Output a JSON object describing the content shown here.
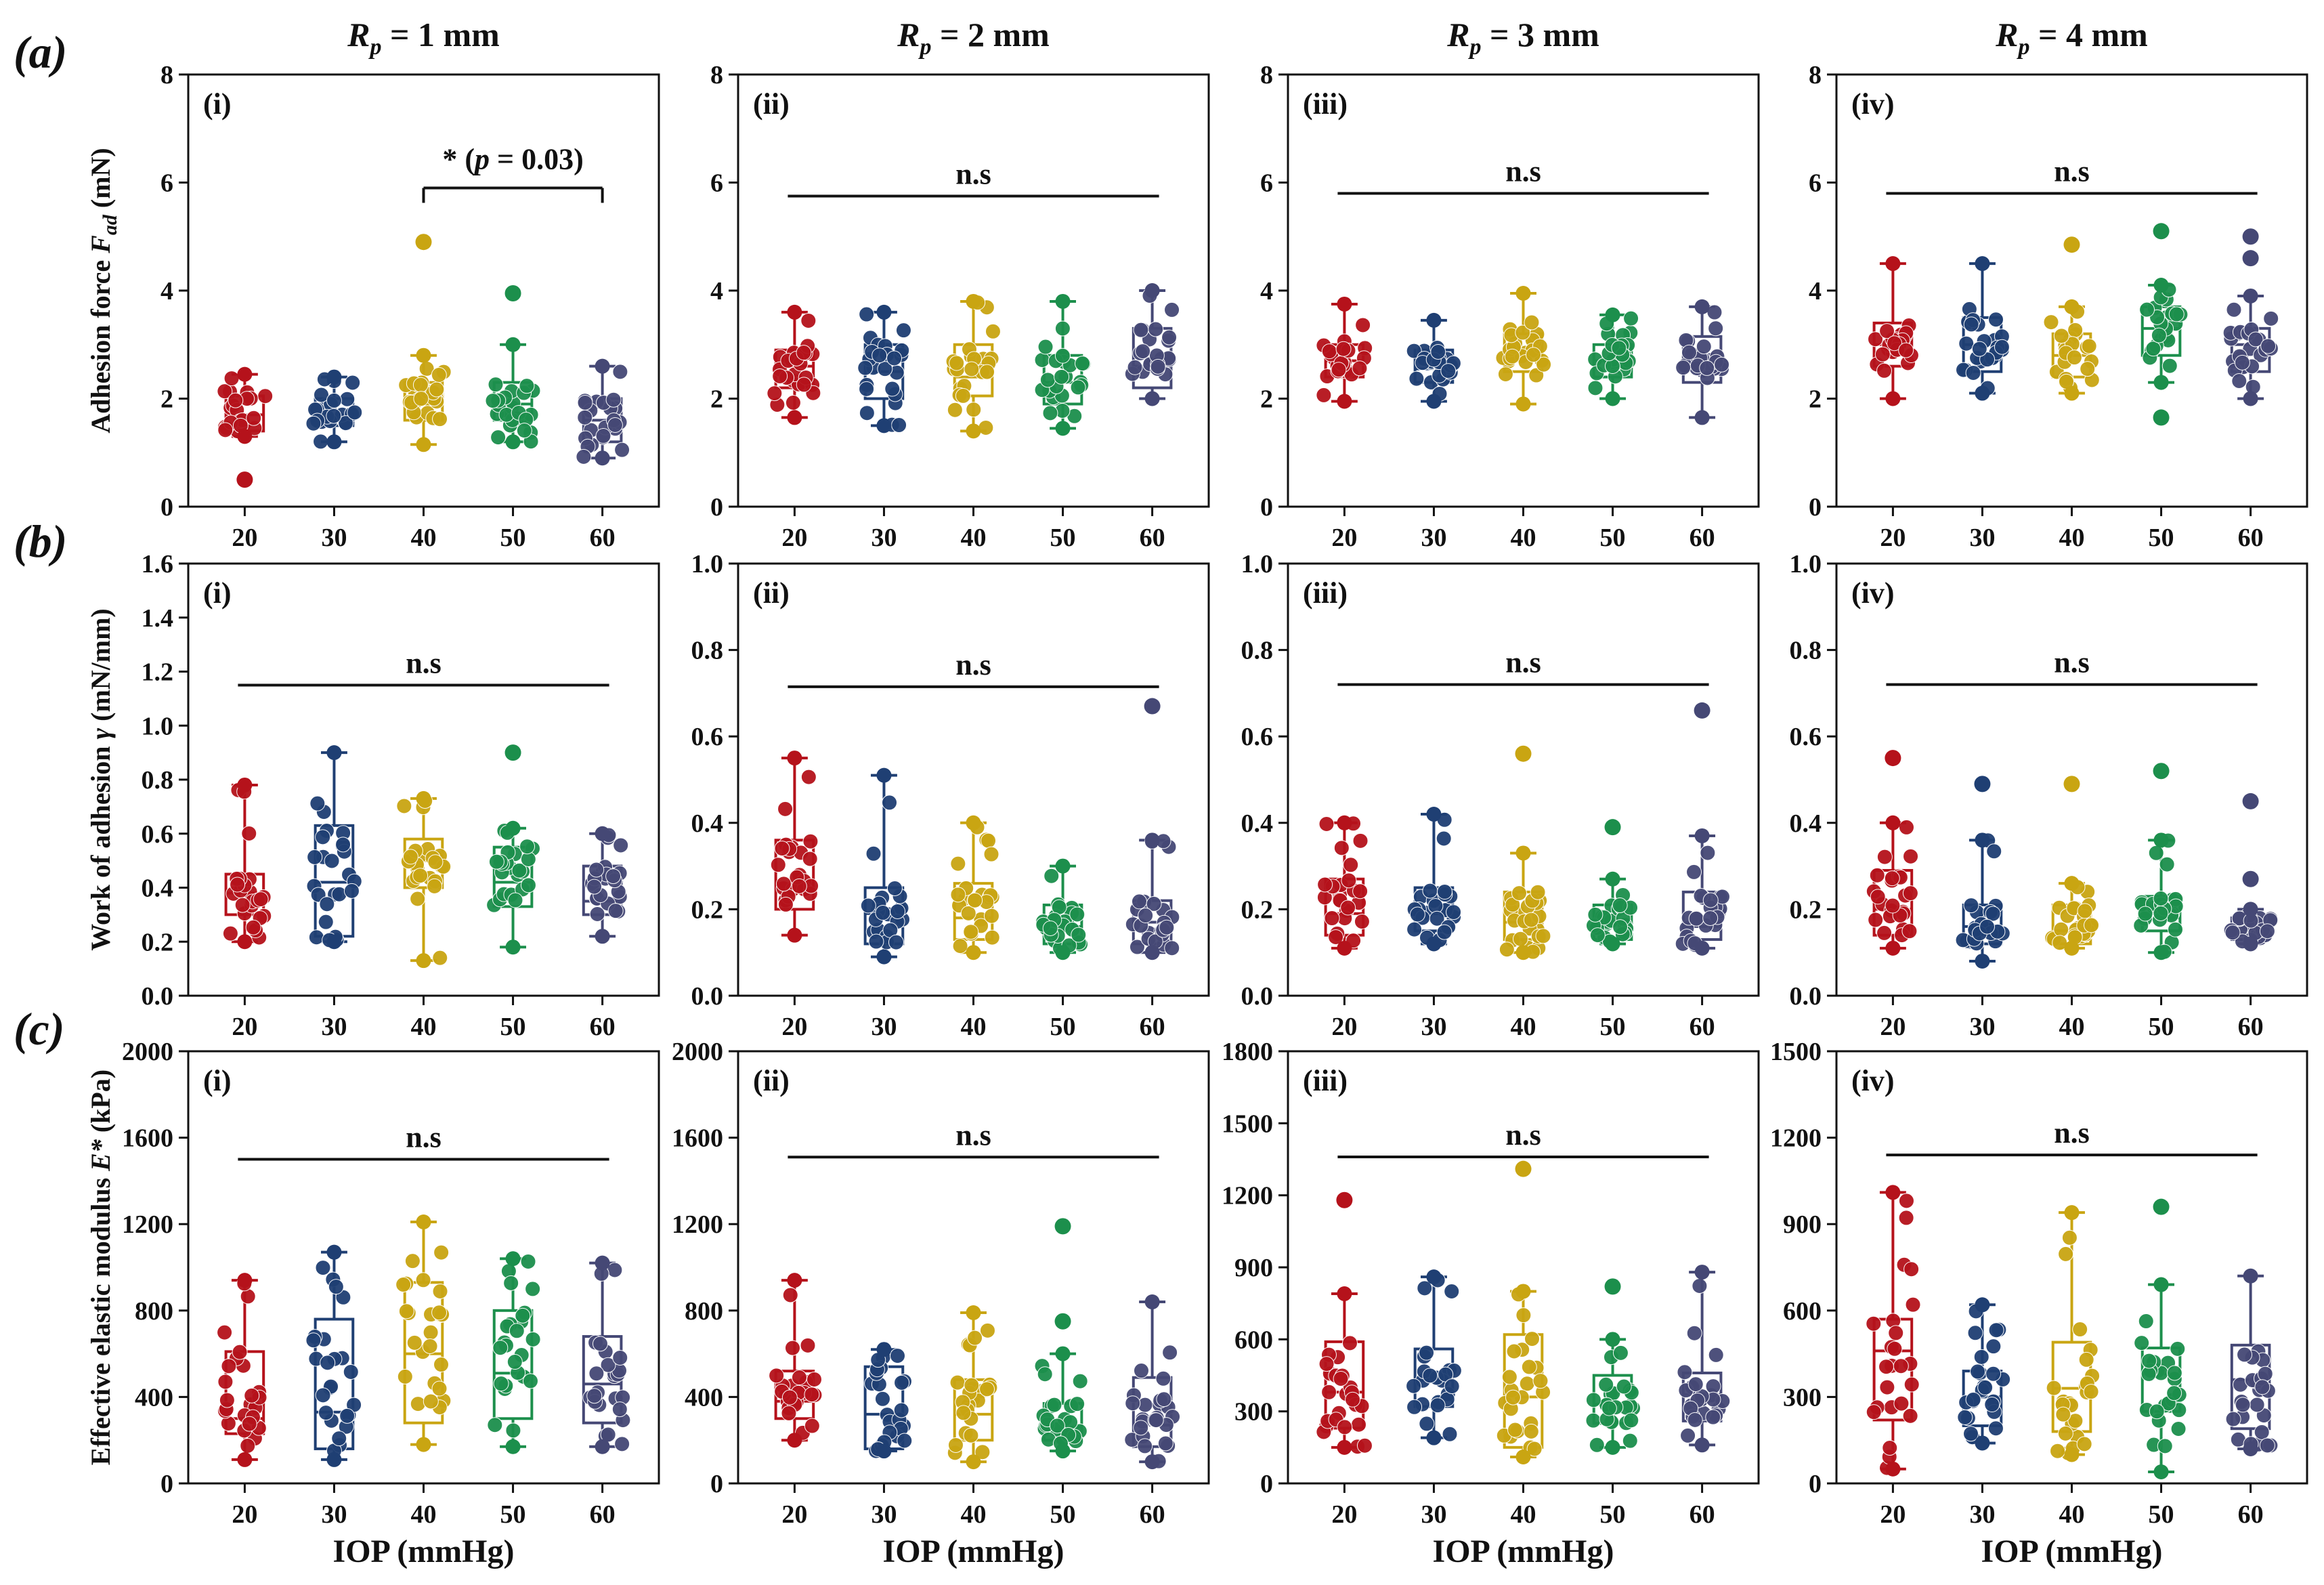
{
  "figure": {
    "xlabel": "IOP (mmHg)",
    "categories": [
      "20",
      "30",
      "40",
      "50",
      "60"
    ],
    "colors": [
      "#b5121b",
      "#1f3f73",
      "#c9a512",
      "#1c8f4c",
      "#454875"
    ],
    "column_titles": [
      "R_p = 1 mm",
      "R_p = 2 mm",
      "R_p = 3 mm",
      "R_p = 4 mm"
    ],
    "column_titles_parts": [
      {
        "var": "R",
        "sub": "p",
        "rest": " = 1 mm"
      },
      {
        "var": "R",
        "sub": "p",
        "rest": " = 2 mm"
      },
      {
        "var": "R",
        "sub": "p",
        "rest": " = 3 mm"
      },
      {
        "var": "R",
        "sub": "p",
        "rest": " = 4 mm"
      }
    ],
    "rows": [
      {
        "letter": "(a)",
        "ylabel": "Adhesion force F_ad (mN)",
        "ylabel_main": "Adhesion force ",
        "ylabel_var": "F",
        "ylabel_sub": "ad",
        "ylabel_unit": " (mN)"
      },
      {
        "letter": "(b)",
        "ylabel": "Work of adhesion γ (mN/mm)",
        "ylabel_main": "Work of adhesion ",
        "ylabel_var": "γ",
        "ylabel_sub": "",
        "ylabel_unit": " (mN/mm)"
      },
      {
        "letter": "(c)",
        "ylabel": "Effective elastic modulus E* (kPa)",
        "ylabel_main": "Effective elastic modulus ",
        "ylabel_var": "E*",
        "ylabel_sub": "",
        "ylabel_unit": " (kPa)"
      }
    ]
  },
  "chart_data": [
    {
      "type": "box-scatter",
      "panel": "(i)",
      "row": 0,
      "col": 0,
      "ylim": [
        0,
        8
      ],
      "yticks": [
        0,
        2,
        4,
        6,
        8
      ],
      "boxes": [
        {
          "min": 1.3,
          "q1": 1.4,
          "median": 1.7,
          "q3": 2.05,
          "max": 2.45
        },
        {
          "min": 1.2,
          "q1": 1.5,
          "median": 1.7,
          "q3": 2.0,
          "max": 2.4
        },
        {
          "min": 1.15,
          "q1": 1.6,
          "median": 1.9,
          "q3": 2.3,
          "max": 2.8
        },
        {
          "min": 1.2,
          "q1": 1.6,
          "median": 1.9,
          "q3": 2.3,
          "max": 3.0
        },
        {
          "min": 0.9,
          "q1": 1.2,
          "median": 1.6,
          "q3": 2.0,
          "max": 2.6
        }
      ],
      "outliers": [
        [
          0.5
        ],
        [],
        [
          4.9
        ],
        [
          3.95
        ],
        []
      ],
      "significance": {
        "label": "* (p = 0.03)",
        "from": "40",
        "to": "60",
        "y": 5.9
      }
    },
    {
      "type": "box-scatter",
      "panel": "(ii)",
      "row": 0,
      "col": 1,
      "ylim": [
        0,
        8
      ],
      "yticks": [
        0,
        2,
        4,
        6,
        8
      ],
      "boxes": [
        {
          "min": 1.65,
          "q1": 2.2,
          "median": 2.6,
          "q3": 2.9,
          "max": 3.6
        },
        {
          "min": 1.5,
          "q1": 2.0,
          "median": 2.5,
          "q3": 3.0,
          "max": 3.6
        },
        {
          "min": 1.4,
          "q1": 2.05,
          "median": 2.4,
          "q3": 3.0,
          "max": 3.8
        },
        {
          "min": 1.45,
          "q1": 1.9,
          "median": 2.3,
          "q3": 2.8,
          "max": 3.8
        },
        {
          "min": 2.0,
          "q1": 2.2,
          "median": 2.6,
          "q3": 3.3,
          "max": 4.0
        }
      ],
      "outliers": [
        [],
        [],
        [],
        [],
        []
      ],
      "significance": {
        "label": "n.s",
        "from": "20",
        "to": "60",
        "y": 5.75
      }
    },
    {
      "type": "box-scatter",
      "panel": "(iii)",
      "row": 0,
      "col": 2,
      "ylim": [
        0,
        8
      ],
      "yticks": [
        0,
        2,
        4,
        6,
        8
      ],
      "boxes": [
        {
          "min": 1.95,
          "q1": 2.4,
          "median": 2.7,
          "q3": 3.0,
          "max": 3.75
        },
        {
          "min": 1.95,
          "q1": 2.3,
          "median": 2.55,
          "q3": 2.9,
          "max": 3.45
        },
        {
          "min": 1.9,
          "q1": 2.5,
          "median": 2.85,
          "q3": 3.2,
          "max": 3.95
        },
        {
          "min": 2.0,
          "q1": 2.4,
          "median": 2.7,
          "q3": 3.0,
          "max": 3.55
        },
        {
          "min": 1.65,
          "q1": 2.3,
          "median": 2.75,
          "q3": 3.15,
          "max": 3.7
        }
      ],
      "outliers": [
        [],
        [],
        [],
        [],
        []
      ],
      "significance": {
        "label": "n.s",
        "from": "20",
        "to": "60",
        "y": 5.8
      }
    },
    {
      "type": "box-scatter",
      "panel": "(iv)",
      "row": 0,
      "col": 3,
      "ylim": [
        0,
        8
      ],
      "yticks": [
        0,
        2,
        4,
        6,
        8
      ],
      "boxes": [
        {
          "min": 2.0,
          "q1": 2.6,
          "median": 3.0,
          "q3": 3.4,
          "max": 4.5
        },
        {
          "min": 2.1,
          "q1": 2.5,
          "median": 3.0,
          "q3": 3.5,
          "max": 4.5
        },
        {
          "min": 2.1,
          "q1": 2.4,
          "median": 2.8,
          "q3": 3.2,
          "max": 3.7
        },
        {
          "min": 2.3,
          "q1": 2.8,
          "median": 3.3,
          "q3": 3.7,
          "max": 4.1
        },
        {
          "min": 2.0,
          "q1": 2.5,
          "median": 3.0,
          "q3": 3.3,
          "max": 3.9
        }
      ],
      "outliers": [
        [],
        [],
        [
          4.85
        ],
        [
          1.65,
          5.1
        ],
        [
          4.6,
          5.0
        ]
      ],
      "significance": {
        "label": "n.s",
        "from": "20",
        "to": "60",
        "y": 5.8
      }
    },
    {
      "type": "box-scatter",
      "panel": "(i)",
      "row": 1,
      "col": 0,
      "ylim": [
        0,
        1.6
      ],
      "yticks": [
        0.0,
        0.2,
        0.4,
        0.6,
        0.8,
        1.0,
        1.2,
        1.4,
        1.6
      ],
      "boxes": [
        {
          "min": 0.2,
          "q1": 0.3,
          "median": 0.38,
          "q3": 0.45,
          "max": 0.78
        },
        {
          "min": 0.2,
          "q1": 0.22,
          "median": 0.42,
          "q3": 0.63,
          "max": 0.9
        },
        {
          "min": 0.13,
          "q1": 0.4,
          "median": 0.5,
          "q3": 0.58,
          "max": 0.73
        },
        {
          "min": 0.18,
          "q1": 0.33,
          "median": 0.42,
          "q3": 0.55,
          "max": 0.62
        },
        {
          "min": 0.22,
          "q1": 0.3,
          "median": 0.35,
          "q3": 0.48,
          "max": 0.6
        }
      ],
      "outliers": [
        [],
        [],
        [],
        [
          0.9
        ],
        []
      ],
      "significance": {
        "label": "n.s",
        "from": "20",
        "to": "60",
        "y": 1.15
      }
    },
    {
      "type": "box-scatter",
      "panel": "(ii)",
      "row": 1,
      "col": 1,
      "ylim": [
        0,
        1.0
      ],
      "yticks": [
        0.0,
        0.2,
        0.4,
        0.6,
        0.8,
        1.0
      ],
      "boxes": [
        {
          "min": 0.14,
          "q1": 0.2,
          "median": 0.26,
          "q3": 0.36,
          "max": 0.55
        },
        {
          "min": 0.09,
          "q1": 0.12,
          "median": 0.19,
          "q3": 0.25,
          "max": 0.51
        },
        {
          "min": 0.1,
          "q1": 0.13,
          "median": 0.18,
          "q3": 0.26,
          "max": 0.4
        },
        {
          "min": 0.1,
          "q1": 0.12,
          "median": 0.16,
          "q3": 0.21,
          "max": 0.3
        },
        {
          "min": 0.1,
          "q1": 0.12,
          "median": 0.17,
          "q3": 0.22,
          "max": 0.36
        }
      ],
      "outliers": [
        [],
        [],
        [],
        [],
        [
          0.67
        ]
      ],
      "significance": {
        "label": "n.s",
        "from": "20",
        "to": "60",
        "y": 0.715
      }
    },
    {
      "type": "box-scatter",
      "panel": "(iii)",
      "row": 1,
      "col": 2,
      "ylim": [
        0,
        1.0
      ],
      "yticks": [
        0.0,
        0.2,
        0.4,
        0.6,
        0.8,
        1.0
      ],
      "boxes": [
        {
          "min": 0.11,
          "q1": 0.14,
          "median": 0.19,
          "q3": 0.27,
          "max": 0.4
        },
        {
          "min": 0.12,
          "q1": 0.15,
          "median": 0.19,
          "q3": 0.25,
          "max": 0.42
        },
        {
          "min": 0.1,
          "q1": 0.13,
          "median": 0.17,
          "q3": 0.24,
          "max": 0.33
        },
        {
          "min": 0.12,
          "q1": 0.13,
          "median": 0.17,
          "q3": 0.21,
          "max": 0.27
        },
        {
          "min": 0.11,
          "q1": 0.13,
          "median": 0.16,
          "q3": 0.24,
          "max": 0.37
        }
      ],
      "outliers": [
        [],
        [],
        [
          0.56
        ],
        [
          0.39
        ],
        [
          0.66
        ]
      ],
      "significance": {
        "label": "n.s",
        "from": "20",
        "to": "60",
        "y": 0.72
      }
    },
    {
      "type": "box-scatter",
      "panel": "(iv)",
      "row": 1,
      "col": 3,
      "ylim": [
        0,
        1.0
      ],
      "yticks": [
        0.0,
        0.2,
        0.4,
        0.6,
        0.8,
        1.0
      ],
      "boxes": [
        {
          "min": 0.11,
          "q1": 0.14,
          "median": 0.2,
          "q3": 0.29,
          "max": 0.4
        },
        {
          "min": 0.08,
          "q1": 0.12,
          "median": 0.16,
          "q3": 0.21,
          "max": 0.36
        },
        {
          "min": 0.11,
          "q1": 0.12,
          "median": 0.15,
          "q3": 0.21,
          "max": 0.26
        },
        {
          "min": 0.1,
          "q1": 0.15,
          "median": 0.18,
          "q3": 0.23,
          "max": 0.36
        },
        {
          "min": 0.12,
          "q1": 0.13,
          "median": 0.15,
          "q3": 0.18,
          "max": 0.2
        }
      ],
      "outliers": [
        [
          0.55
        ],
        [
          0.49
        ],
        [
          0.49
        ],
        [
          0.52
        ],
        [
          0.27,
          0.45
        ]
      ],
      "significance": {
        "label": "n.s",
        "from": "20",
        "to": "60",
        "y": 0.72
      }
    },
    {
      "type": "box-scatter",
      "panel": "(i)",
      "row": 2,
      "col": 0,
      "ylim": [
        0,
        2000
      ],
      "yticks": [
        0,
        400,
        800,
        1200,
        1600,
        2000
      ],
      "boxes": [
        {
          "min": 110,
          "q1": 230,
          "median": 300,
          "q3": 610,
          "max": 940
        },
        {
          "min": 110,
          "q1": 160,
          "median": 330,
          "q3": 760,
          "max": 1070
        },
        {
          "min": 180,
          "q1": 280,
          "median": 600,
          "q3": 930,
          "max": 1210
        },
        {
          "min": 170,
          "q1": 300,
          "median": 510,
          "q3": 800,
          "max": 1040
        },
        {
          "min": 170,
          "q1": 280,
          "median": 460,
          "q3": 680,
          "max": 1020
        }
      ],
      "outliers": [
        [],
        [],
        [],
        [],
        []
      ],
      "significance": {
        "label": "n.s",
        "from": "20",
        "to": "60",
        "y": 1500
      }
    },
    {
      "type": "box-scatter",
      "panel": "(ii)",
      "row": 2,
      "col": 1,
      "ylim": [
        0,
        2000
      ],
      "yticks": [
        0,
        400,
        800,
        1200,
        1600,
        2000
      ],
      "boxes": [
        {
          "min": 200,
          "q1": 300,
          "median": 380,
          "q3": 520,
          "max": 940
        },
        {
          "min": 150,
          "q1": 160,
          "median": 320,
          "q3": 540,
          "max": 620
        },
        {
          "min": 100,
          "q1": 200,
          "median": 320,
          "q3": 480,
          "max": 790
        },
        {
          "min": 150,
          "q1": 200,
          "median": 260,
          "q3": 370,
          "max": 600
        },
        {
          "min": 100,
          "q1": 170,
          "median": 270,
          "q3": 490,
          "max": 840
        }
      ],
      "outliers": [
        [],
        [],
        [],
        [
          750,
          1190
        ],
        []
      ],
      "significance": {
        "label": "n.s",
        "from": "20",
        "to": "60",
        "y": 1510
      }
    },
    {
      "type": "box-scatter",
      "panel": "(iii)",
      "row": 2,
      "col": 2,
      "ylim": [
        0,
        1800
      ],
      "yticks": [
        0,
        300,
        600,
        900,
        1200,
        1500,
        1800
      ],
      "boxes": [
        {
          "min": 150,
          "q1": 230,
          "median": 380,
          "q3": 590,
          "max": 790
        },
        {
          "min": 190,
          "q1": 320,
          "median": 430,
          "q3": 560,
          "max": 860
        },
        {
          "min": 110,
          "q1": 150,
          "median": 360,
          "q3": 620,
          "max": 800
        },
        {
          "min": 150,
          "q1": 250,
          "median": 330,
          "q3": 450,
          "max": 600
        },
        {
          "min": 160,
          "q1": 260,
          "median": 370,
          "q3": 460,
          "max": 880
        }
      ],
      "outliers": [
        [
          1180
        ],
        [],
        [
          1310
        ],
        [
          820
        ],
        []
      ],
      "significance": {
        "label": "n.s",
        "from": "20",
        "to": "60",
        "y": 1360
      }
    },
    {
      "type": "box-scatter",
      "panel": "(iv)",
      "row": 2,
      "col": 3,
      "ylim": [
        0,
        1500
      ],
      "yticks": [
        0,
        300,
        600,
        900,
        1200,
        1500
      ],
      "boxes": [
        {
          "min": 50,
          "q1": 220,
          "median": 460,
          "q3": 570,
          "max": 1010
        },
        {
          "min": 140,
          "q1": 200,
          "median": 300,
          "q3": 390,
          "max": 620
        },
        {
          "min": 100,
          "q1": 180,
          "median": 330,
          "q3": 490,
          "max": 940
        },
        {
          "min": 40,
          "q1": 250,
          "median": 380,
          "q3": 470,
          "max": 690
        },
        {
          "min": 120,
          "q1": 190,
          "median": 360,
          "q3": 480,
          "max": 720
        }
      ],
      "outliers": [
        [],
        [],
        [],
        [
          960
        ],
        []
      ],
      "significance": {
        "label": "n.s",
        "from": "20",
        "to": "60",
        "y": 1140
      }
    }
  ]
}
